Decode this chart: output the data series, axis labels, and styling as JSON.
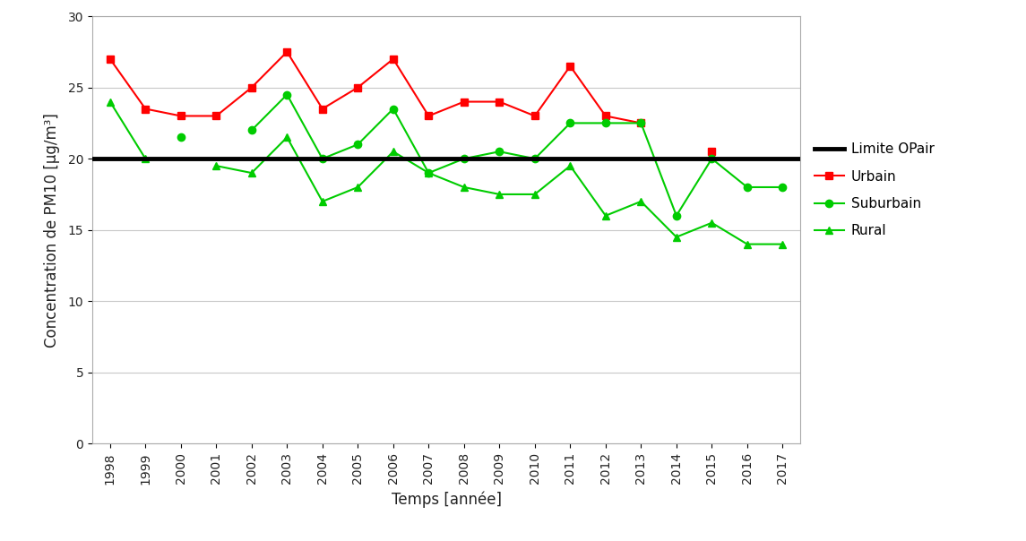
{
  "years": [
    1998,
    1999,
    2000,
    2001,
    2002,
    2003,
    2004,
    2005,
    2006,
    2007,
    2008,
    2009,
    2010,
    2011,
    2012,
    2013,
    2014,
    2015,
    2016,
    2017
  ],
  "urbain": [
    27,
    23.5,
    23,
    23,
    25,
    27.5,
    23.5,
    25,
    27,
    23,
    24,
    24,
    23,
    26.5,
    23,
    22.5,
    null,
    20.5,
    null,
    null
  ],
  "suburbain": [
    null,
    null,
    21.5,
    null,
    22,
    24.5,
    20,
    21,
    23.5,
    19,
    20,
    20.5,
    20,
    22.5,
    22.5,
    22.5,
    16,
    20,
    18,
    18
  ],
  "rural": [
    24,
    20,
    null,
    19.5,
    19,
    21.5,
    17,
    18,
    20.5,
    19,
    18,
    17.5,
    17.5,
    19.5,
    16,
    17,
    14.5,
    15.5,
    14,
    14
  ],
  "limite": 20,
  "xlabel": "Temps [année]",
  "ylabel": "Concentration de PM10 [µg/m³]",
  "ylim": [
    0,
    30
  ],
  "yticks": [
    0,
    5,
    10,
    15,
    20,
    25,
    30
  ],
  "color_urbain": "#FF0000",
  "color_suburbain": "#00CC00",
  "color_rural": "#00CC00",
  "color_limite": "#000000",
  "color_bg": "#FFFFFF",
  "legend_limite": "Limite OPair",
  "legend_urbain": "Urbain",
  "legend_suburbain": "Suburbain",
  "legend_rural": "Rural"
}
